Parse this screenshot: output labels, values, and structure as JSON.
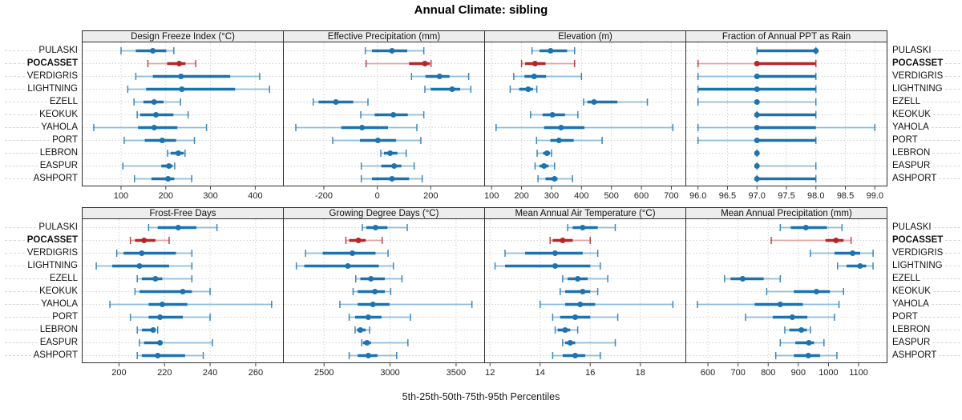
{
  "title": "Annual Climate: sibling",
  "footer": "5th-25th-50th-75th-95th Percentiles",
  "stations": [
    "PULASKI",
    "POCASSET",
    "VERDIGRIS",
    "LIGHTNING",
    "EZELL",
    "KEOKUK",
    "YAHOLA",
    "PORT",
    "LEBRON",
    "EASPUR",
    "ASHPORT"
  ],
  "highlight_station": "POCASSET",
  "colors": {
    "series_dark": "#1d73b0",
    "series_light": "#8dbdda",
    "highlight_dark": "#b4262a",
    "highlight_light": "#dea7a4",
    "grid": "#d2d2d2",
    "frame": "#2e2e2e",
    "strip_bg": "#ededed",
    "tick": "#444444",
    "tick_label": "#222222"
  },
  "chart_data": {
    "type": "scatter",
    "subtype": "five-number-percentile-intervals",
    "percentile_labels": [
      "5th",
      "25th",
      "50th",
      "75th",
      "95th"
    ],
    "grid": "dashed",
    "layout": "2 rows x 4 columns, shared station y-axis, labels both sides",
    "panels": [
      {
        "id": "design-freeze-index",
        "title": "Design Freeze Index (°C)",
        "row": 0,
        "col": 0,
        "xlim": [
          14,
          462
        ],
        "tick_values": [
          100,
          200,
          300,
          400
        ],
        "tick_labels": [
          "100",
          "200",
          "300",
          "400"
        ],
        "values": [
          [
            100,
            133,
            171,
            201,
            218
          ],
          [
            160,
            203,
            230,
            244,
            267
          ],
          [
            133,
            171,
            234,
            344,
            410
          ],
          [
            115,
            156,
            236,
            355,
            432
          ],
          [
            129,
            150,
            174,
            195,
            233
          ],
          [
            136,
            143,
            178,
            217,
            250
          ],
          [
            39,
            138,
            174,
            226,
            291
          ],
          [
            107,
            153,
            192,
            223,
            264
          ],
          [
            204,
            211,
            228,
            240,
            243
          ],
          [
            104,
            190,
            207,
            215,
            220
          ],
          [
            130,
            168,
            205,
            219,
            258
          ]
        ]
      },
      {
        "id": "effective-precipitation",
        "title": "Effective Precipitation (mm)",
        "row": 0,
        "col": 1,
        "xlim": [
          -350,
          400
        ],
        "tick_values": [
          -200,
          0,
          200
        ],
        "tick_labels": [
          "-200",
          "0",
          "200"
        ],
        "values": [
          [
            -45,
            -20,
            55,
            112,
            174
          ],
          [
            -42,
            119,
            178,
            196,
            201
          ],
          [
            128,
            180,
            233,
            270,
            342
          ],
          [
            178,
            200,
            280,
            310,
            350
          ],
          [
            -240,
            -220,
            -155,
            -90,
            -35
          ],
          [
            -62,
            -10,
            60,
            114,
            174
          ],
          [
            -305,
            -135,
            -57,
            40,
            148
          ],
          [
            -167,
            -65,
            2,
            70,
            163
          ],
          [
            13,
            25,
            48,
            75,
            108
          ],
          [
            -60,
            15,
            63,
            90,
            138
          ],
          [
            -60,
            -20,
            55,
            119,
            168
          ]
        ]
      },
      {
        "id": "elevation",
        "title": "Elevation (m)",
        "row": 0,
        "col": 2,
        "xlim": [
          78,
          747
        ],
        "tick_values": [
          100,
          200,
          300,
          400,
          500,
          600,
          700
        ],
        "tick_labels": [
          "100",
          "200",
          "300",
          "400",
          "500",
          "600",
          "700"
        ],
        "values": [
          [
            235,
            260,
            297,
            352,
            377
          ],
          [
            200,
            212,
            245,
            280,
            377
          ],
          [
            174,
            210,
            242,
            282,
            400
          ],
          [
            162,
            192,
            222,
            238,
            251
          ],
          [
            407,
            420,
            442,
            520,
            620
          ],
          [
            230,
            270,
            303,
            345,
            388
          ],
          [
            115,
            275,
            332,
            410,
            705
          ],
          [
            250,
            296,
            325,
            374,
            469
          ],
          [
            252,
            272,
            285,
            295,
            300
          ],
          [
            245,
            260,
            275,
            290,
            310
          ],
          [
            255,
            280,
            310,
            320,
            370
          ]
        ]
      },
      {
        "id": "fraction-ppt-as-rain",
        "title": "Fraction of Annual PPT as Rain",
        "row": 0,
        "col": 3,
        "xlim": [
          95.8,
          99.2
        ],
        "tick_values": [
          96.0,
          96.5,
          97.0,
          97.5,
          98.0,
          98.5,
          99.0
        ],
        "tick_labels": [
          "96.0",
          "96.5",
          "97.0",
          "97.5",
          "98.0",
          "98.5",
          "99.0"
        ],
        "values": [
          [
            97,
            97,
            98,
            98,
            98
          ],
          [
            96,
            97,
            97,
            98,
            98
          ],
          [
            96,
            97,
            97,
            98,
            98
          ],
          [
            96,
            96,
            97,
            98,
            98
          ],
          [
            96,
            97,
            97,
            97,
            98
          ],
          [
            97,
            97,
            97,
            98,
            98
          ],
          [
            96,
            97,
            97,
            98,
            99
          ],
          [
            96,
            97,
            97,
            98,
            98
          ],
          [
            97,
            97,
            97,
            97,
            97
          ],
          [
            97,
            97,
            97,
            97,
            98
          ],
          [
            97,
            97,
            97,
            98,
            98
          ]
        ]
      },
      {
        "id": "frost-free-days",
        "title": "Frost-Free Days",
        "row": 1,
        "col": 0,
        "xlim": [
          184,
          272
        ],
        "tick_values": [
          200,
          220,
          240,
          260
        ],
        "tick_labels": [
          "200",
          "220",
          "240",
          "260"
        ],
        "values": [
          [
            213,
            217,
            226,
            234,
            243
          ],
          [
            205,
            207,
            211,
            216,
            222
          ],
          [
            199,
            202,
            210,
            225,
            232
          ],
          [
            190,
            197,
            209,
            222,
            232
          ],
          [
            208,
            210,
            216,
            219,
            232
          ],
          [
            207,
            209,
            228,
            232,
            240
          ],
          [
            196,
            213,
            219,
            230,
            267
          ],
          [
            205,
            213,
            218,
            228,
            240
          ],
          [
            208,
            210,
            215,
            216,
            217
          ],
          [
            209,
            211,
            218,
            219,
            241
          ],
          [
            208,
            210,
            217,
            229,
            237
          ]
        ]
      },
      {
        "id": "growing-degree-days",
        "title": "Growing Degree Days (°C)",
        "row": 1,
        "col": 1,
        "xlim": [
          2195,
          3713
        ],
        "tick_values": [
          2500,
          3000,
          3500
        ],
        "tick_labels": [
          "2500",
          "3000",
          "3500"
        ],
        "values": [
          [
            2790,
            2820,
            2890,
            2980,
            3130
          ],
          [
            2665,
            2690,
            2760,
            2815,
            2940
          ],
          [
            2360,
            2490,
            2715,
            2890,
            2985
          ],
          [
            2290,
            2350,
            2680,
            2915,
            3025
          ],
          [
            2740,
            2775,
            2855,
            2960,
            3090
          ],
          [
            2720,
            2755,
            2885,
            2960,
            3005
          ],
          [
            2620,
            2755,
            2870,
            2995,
            3620
          ],
          [
            2690,
            2735,
            2835,
            2935,
            3155
          ],
          [
            2735,
            2750,
            2775,
            2815,
            2845
          ],
          [
            2785,
            2795,
            2825,
            2855,
            3135
          ],
          [
            2690,
            2755,
            2835,
            2905,
            3050
          ]
        ]
      },
      {
        "id": "mean-annual-air-temperature",
        "title": "Mean Annual Air Temperature (°C)",
        "row": 1,
        "col": 2,
        "xlim": [
          11.8,
          19.8
        ],
        "tick_values": [
          12,
          14,
          16,
          18
        ],
        "tick_labels": [
          "12",
          "14",
          "16",
          "18"
        ],
        "values": [
          [
            15.1,
            15.3,
            15.7,
            16.3,
            17.0
          ],
          [
            14.4,
            14.5,
            14.9,
            15.3,
            16.0
          ],
          [
            12.6,
            13.4,
            14.6,
            15.7,
            16.3
          ],
          [
            12.2,
            12.6,
            14.6,
            16.0,
            16.4
          ],
          [
            14.9,
            15.1,
            15.5,
            15.9,
            16.7
          ],
          [
            14.8,
            15.0,
            15.7,
            16.0,
            16.3
          ],
          [
            14.0,
            15.0,
            15.6,
            16.2,
            19.3
          ],
          [
            14.5,
            14.8,
            15.4,
            16.0,
            17.1
          ],
          [
            14.6,
            14.7,
            15.0,
            15.2,
            15.5
          ],
          [
            14.9,
            15.0,
            15.2,
            15.4,
            17.0
          ],
          [
            14.5,
            14.9,
            15.4,
            15.8,
            16.4
          ]
        ]
      },
      {
        "id": "mean-annual-precipitation",
        "title": "Mean Annual Precipitation (mm)",
        "row": 1,
        "col": 3,
        "xlim": [
          528,
          1193
        ],
        "tick_values": [
          600,
          700,
          800,
          900,
          1000,
          1100
        ],
        "tick_labels": [
          "600",
          "700",
          "800",
          "900",
          "1000",
          "1100"
        ],
        "values": [
          [
            840,
            875,
            925,
            995,
            1045
          ],
          [
            810,
            990,
            1025,
            1050,
            1075
          ],
          [
            940,
            1020,
            1080,
            1105,
            1148
          ],
          [
            1030,
            1060,
            1105,
            1125,
            1148
          ],
          [
            655,
            675,
            715,
            785,
            840
          ],
          [
            795,
            885,
            960,
            1005,
            1050
          ],
          [
            565,
            755,
            840,
            915,
            1035
          ],
          [
            725,
            815,
            880,
            930,
            1020
          ],
          [
            855,
            870,
            910,
            928,
            940
          ],
          [
            840,
            890,
            935,
            952,
            985
          ],
          [
            825,
            885,
            933,
            972,
            1028
          ]
        ]
      }
    ]
  }
}
